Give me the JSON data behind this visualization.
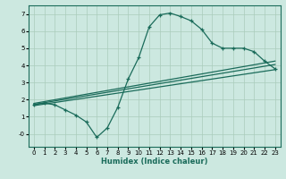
{
  "xlabel": "Humidex (Indice chaleur)",
  "bg_color": "#cce8e0",
  "line_color": "#1a6b5a",
  "grid_color": "#aaccbb",
  "xlim": [
    -0.5,
    23.5
  ],
  "ylim": [
    -0.75,
    7.5
  ],
  "xticks": [
    0,
    1,
    2,
    3,
    4,
    5,
    6,
    7,
    8,
    9,
    10,
    11,
    12,
    13,
    14,
    15,
    16,
    17,
    18,
    19,
    20,
    21,
    22,
    23
  ],
  "yticks": [
    0,
    1,
    2,
    3,
    4,
    5,
    6,
    7
  ],
  "ytick_labels": [
    "-0",
    "1",
    "2",
    "3",
    "4",
    "5",
    "6",
    "7"
  ],
  "curve_x": [
    0,
    1,
    2,
    3,
    4,
    5,
    6,
    7,
    8,
    9,
    10,
    11,
    12,
    13,
    14,
    15,
    16,
    17,
    18,
    19,
    20,
    21,
    22,
    23
  ],
  "curve_y": [
    1.7,
    1.8,
    1.7,
    1.4,
    1.1,
    0.7,
    -0.2,
    0.35,
    1.55,
    3.2,
    4.45,
    6.25,
    6.95,
    7.05,
    6.85,
    6.6,
    6.1,
    5.3,
    5.0,
    5.0,
    5.0,
    4.8,
    4.25,
    3.8
  ],
  "line1_x": [
    0,
    23
  ],
  "line1_y": [
    1.65,
    3.75
  ],
  "line2_x": [
    0,
    23
  ],
  "line2_y": [
    1.72,
    4.05
  ],
  "line3_x": [
    0,
    23
  ],
  "line3_y": [
    1.78,
    4.25
  ]
}
